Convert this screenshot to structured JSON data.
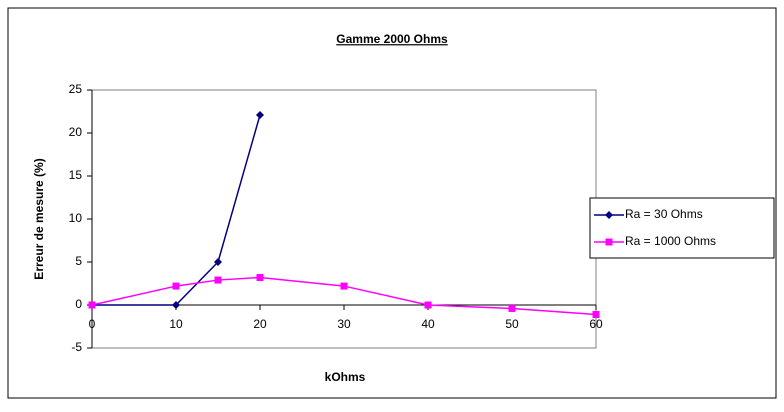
{
  "chart_data": {
    "type": "line",
    "title": "Gamme 2000 Ohms",
    "x_label": "kOhms",
    "y_label": "Erreur de mesure (%)",
    "xlim": [
      0,
      60
    ],
    "xticks": [
      0,
      10,
      20,
      30,
      40,
      50,
      60
    ],
    "ylim": [
      -5,
      25
    ],
    "yticks": [
      -5,
      0,
      5,
      10,
      15,
      20,
      25
    ],
    "legend": "right",
    "grid": false,
    "series": [
      {
        "name": "Ra = 30 Ohms",
        "color": "#000080",
        "marker": "diamond",
        "x": [
          0,
          10,
          15,
          20
        ],
        "values": [
          0,
          0,
          5,
          22.1
        ]
      },
      {
        "name": "Ra = 1000 Ohms",
        "color": "#ff00ff",
        "marker": "square",
        "x": [
          0,
          10,
          15,
          20,
          30,
          40,
          50,
          60
        ],
        "values": [
          0,
          2.2,
          2.9,
          3.2,
          2.2,
          0,
          -0.4,
          -1.1
        ]
      }
    ]
  }
}
